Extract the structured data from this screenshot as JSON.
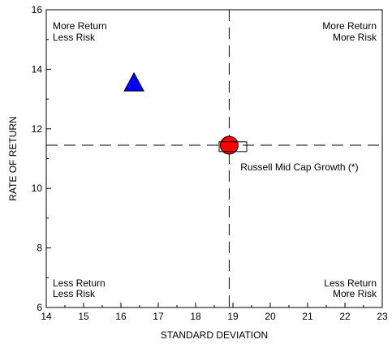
{
  "chart_data": {
    "type": "scatter",
    "title": "",
    "xlabel": "STANDARD DEVIATION",
    "ylabel": "RATE OF RETURN",
    "xlim": [
      14,
      23
    ],
    "ylim": [
      6,
      16
    ],
    "xticks": [
      14,
      15,
      16,
      17,
      18,
      19,
      20,
      21,
      22,
      23
    ],
    "yticks": [
      6,
      8,
      10,
      12,
      14,
      16
    ],
    "grid": false,
    "reference_lines": {
      "x": 18.9,
      "y": 11.45,
      "style": "dashed"
    },
    "points": [
      {
        "x": 16.35,
        "y": 13.55,
        "marker": "triangle",
        "color": "#0000ff"
      },
      {
        "x": 18.9,
        "y": 11.45,
        "marker": "circle",
        "color": "#ff0000"
      },
      {
        "x": 19.0,
        "y": 11.4,
        "marker": "rectangle",
        "color": "#ffffff"
      }
    ],
    "annotations": [
      {
        "text": "Russell Mid Cap Growth (*)",
        "x": 19.2,
        "y": 10.6
      }
    ],
    "quadrant_labels": {
      "top_left": [
        "More Return",
        "Less Risk"
      ],
      "top_right": [
        "More Return",
        "More Risk"
      ],
      "bottom_left": [
        "Less Return",
        "Less Risk"
      ],
      "bottom_right": [
        "Less Return",
        "More Risk"
      ]
    }
  }
}
